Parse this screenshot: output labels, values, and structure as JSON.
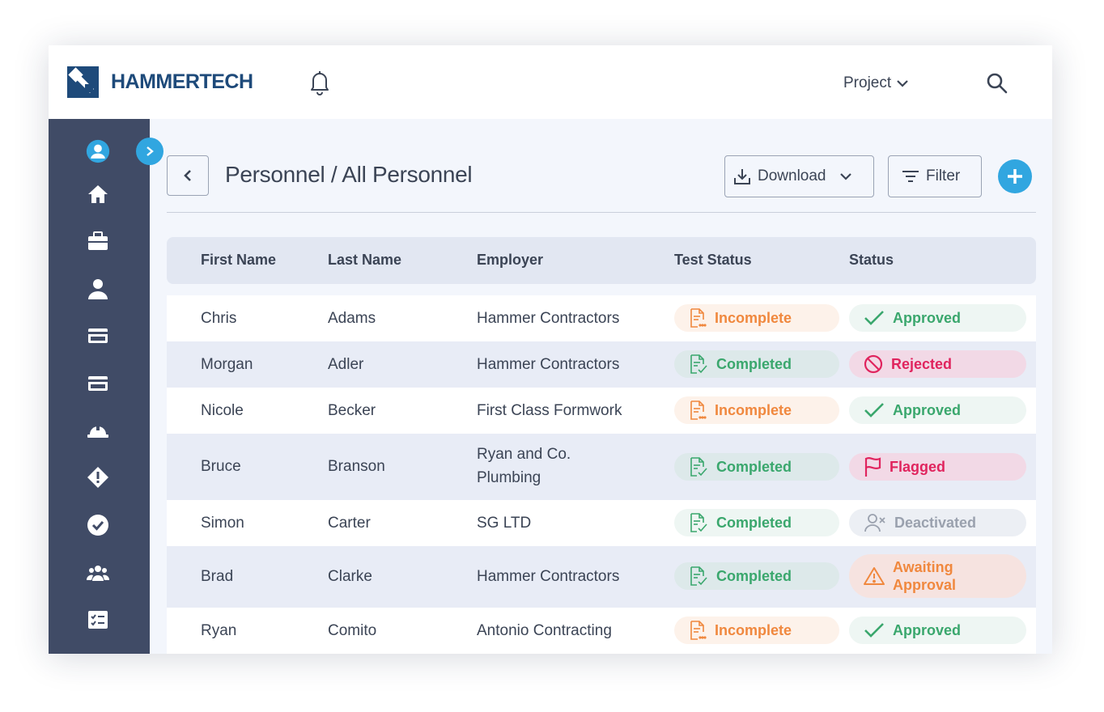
{
  "brand": {
    "name": "HAMMERTECH",
    "color": "#1e4a7a",
    "accent": "#31a6e0"
  },
  "topbar": {
    "notifications_icon": "bell-icon",
    "project_label": "Project",
    "search_icon": "search-icon"
  },
  "sidebar": {
    "items": [
      {
        "name": "user-circle-icon"
      },
      {
        "name": "home-icon"
      },
      {
        "name": "briefcase-icon"
      },
      {
        "name": "person-icon"
      },
      {
        "name": "card-icon"
      },
      {
        "name": "card-icon"
      },
      {
        "name": "hard-hat-icon"
      },
      {
        "name": "warning-diamond-icon"
      },
      {
        "name": "check-circle-icon"
      },
      {
        "name": "group-icon"
      },
      {
        "name": "checklist-icon"
      }
    ]
  },
  "page": {
    "title": "Personnel / All Personnel",
    "download_label": "Download",
    "filter_label": "Filter"
  },
  "table": {
    "columns": [
      "First Name",
      "Last Name",
      "Employer",
      "Test Status",
      "Status"
    ],
    "rows": [
      {
        "first": "Chris",
        "last": "Adams",
        "employer": "Hammer Contractors",
        "test_status": "Incomplete",
        "status": "Approved"
      },
      {
        "first": "Morgan",
        "last": "Adler",
        "employer": "Hammer Contractors",
        "test_status": "Completed",
        "status": "Rejected"
      },
      {
        "first": "Nicole",
        "last": "Becker",
        "employer": "First Class Formwork",
        "test_status": "Incomplete",
        "status": "Approved"
      },
      {
        "first": "Bruce",
        "last": "Branson",
        "employer": "Ryan and Co. Plumbing",
        "test_status": "Completed",
        "status": "Flagged"
      },
      {
        "first": "Simon",
        "last": "Carter",
        "employer": "SG LTD",
        "test_status": "Completed",
        "status": "Deactivated"
      },
      {
        "first": "Brad",
        "last": "Clarke",
        "employer": "Hammer Contractors",
        "test_status": "Completed",
        "status": "Awaiting Approval"
      },
      {
        "first": "Ryan",
        "last": "Comito",
        "employer": "Antonio Contracting",
        "test_status": "Incomplete",
        "status": "Approved"
      }
    ]
  },
  "status_colors": {
    "incomplete": "#f0883e",
    "completed": "#3aa76d",
    "approved": "#3aa76d",
    "rejected": "#e0245e",
    "flagged": "#e0245e",
    "deactivated": "#9aa1ae",
    "awaiting": "#f0883e"
  }
}
